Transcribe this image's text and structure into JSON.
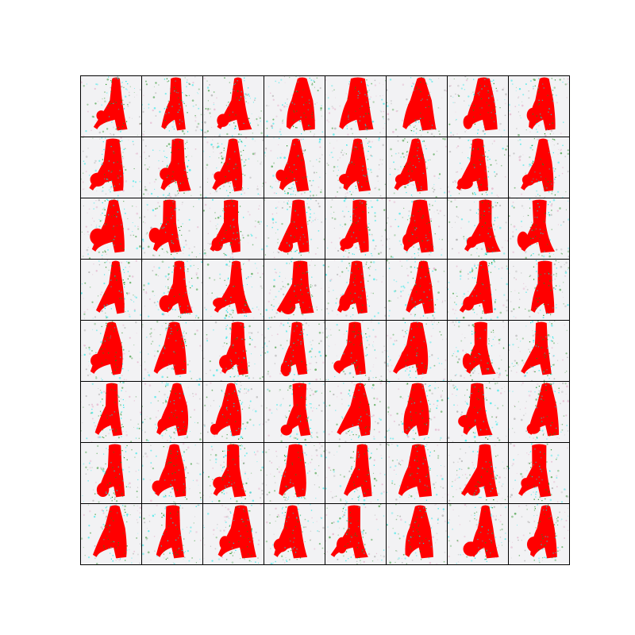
{
  "image": {
    "kind": "generated-sample-grid",
    "rows": 8,
    "cols": 8,
    "cell_background": "#f2f2f4",
    "frame_color": "#000000",
    "figure_color": "#ff0000",
    "noise_colors": [
      "#00e5e5",
      "#1a8c1a",
      "#9a9a9a",
      "#e0a0c0"
    ]
  }
}
